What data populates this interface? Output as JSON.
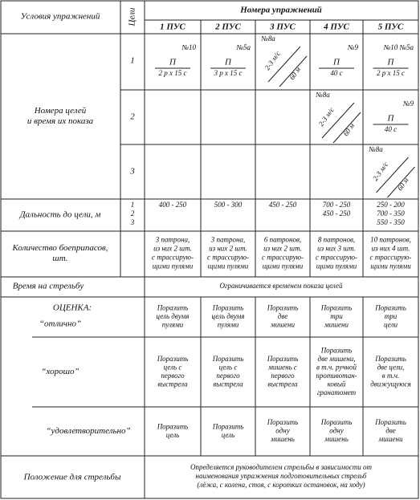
{
  "header": {
    "conditions": "Условия упражнений",
    "targets": "Цели",
    "exercises": "Номера упражнений",
    "columns": [
      "1 ПУС",
      "2 ПУС",
      "3 ПУС",
      "4 ПУС",
      "5 ПУС"
    ]
  },
  "target_section": {
    "label": [
      "Номера целей",
      "и время их показа"
    ],
    "rows": [
      {
        "number": "1",
        "cells": [
          {
            "target": "№10",
            "type": "П",
            "time": "2 р х 15 с"
          },
          {
            "target": "№5а",
            "type": "П",
            "time": "3 р х 15 с"
          },
          {
            "target": "№8а",
            "speed": "2-3 м/с",
            "distance": "60 м"
          },
          {
            "target": "№9",
            "type": "П",
            "time": "40 с"
          },
          {
            "target": "№10 №5а",
            "type": "П",
            "time": "2 р х 15 с"
          }
        ]
      },
      {
        "number": "2",
        "cells": [
          null,
          null,
          null,
          {
            "target": "№8а",
            "speed": "2-3 м/с",
            "distance": "60 м"
          },
          {
            "target": "№9",
            "type": "П",
            "time": "40 с"
          }
        ]
      },
      {
        "number": "3",
        "cells": [
          null,
          null,
          null,
          null,
          {
            "target": "№8а",
            "speed": "2-3 м/с",
            "distance": "60 м"
          }
        ]
      }
    ]
  },
  "range": {
    "label": "Дальность до цели, м",
    "rows": [
      "1",
      "2",
      "3"
    ],
    "cells": [
      [
        "400 - 250"
      ],
      [
        "500 - 300"
      ],
      [
        "450 - 250"
      ],
      [
        "700 - 250",
        "450 - 250"
      ],
      [
        "250 - 200",
        "700 - 350",
        "550 - 350"
      ]
    ]
  },
  "ammo": {
    "label": [
      "Количество боеприпасов,",
      "шт."
    ],
    "cells": [
      [
        "3 патрона,",
        "из них 2 шт.",
        "с трассирую-",
        "щими пулями"
      ],
      [
        "3 патрона,",
        "из них 2 шт.",
        "с трассирую-",
        "щими пулями"
      ],
      [
        "6 патронов,",
        "из них 2 шт.",
        "с трассирую-",
        "щими пулями"
      ],
      [
        "8 патронов,",
        "из них 3 шт.",
        "с трассирую-",
        "щими пулями"
      ],
      [
        "10 патронов,",
        "из них 4 шт.",
        "с трассирую-",
        "щими пулями"
      ]
    ]
  },
  "time": {
    "label": "Время на стрельбу",
    "text": "Ограничивается временем показа целей"
  },
  "grades": {
    "title": "ОЦЕНКА:",
    "rows": [
      {
        "label": "“отлично”",
        "cells": [
          [
            "Поразить",
            "цель двумя",
            "пулями"
          ],
          [
            "Поразить",
            "цель двумя",
            "пулями"
          ],
          [
            "Поразить",
            "две",
            "мишени"
          ],
          [
            "Поразить",
            "три",
            "мишени"
          ],
          [
            "Поразить",
            "три",
            "цели"
          ]
        ]
      },
      {
        "label": "“хорошо”",
        "cells": [
          [
            "Поразить",
            "цель с",
            "первого",
            "выстрела"
          ],
          [
            "Поразить",
            "цель с",
            "первого",
            "выстрела"
          ],
          [
            "Поразить",
            "мишень с",
            "первого",
            "выстрела"
          ],
          [
            "Поразить",
            "две мишени,",
            "в т.ч. ручной",
            "противотан-",
            "ковый",
            "гранатомет"
          ],
          [
            "Поразить",
            "две цели,",
            "в т.ч.",
            "движущуюся"
          ]
        ]
      },
      {
        "label": "“удовлетворительно”",
        "cells": [
          [
            "Поразить",
            "цель"
          ],
          [
            "Поразить",
            "цель"
          ],
          [
            "Поразить",
            "одну",
            "мишень"
          ],
          [
            "Поразить",
            "одну",
            "мишень"
          ],
          [
            "Поразить",
            "две",
            "мишени"
          ]
        ]
      }
    ]
  },
  "position": {
    "label": "Положение для стрельбы",
    "text": [
      "Определяется руководителем стрельбы в зависимости от",
      "наименования упражнения подготовительных стрельб",
      "(лёжа, с колена, стоя, с коротких остановок, на ходу)"
    ]
  }
}
